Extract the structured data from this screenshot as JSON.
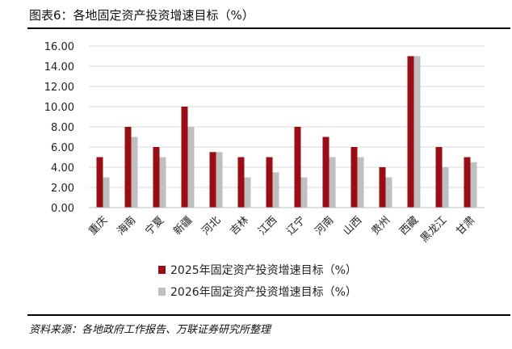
{
  "figure": {
    "title": "图表6：各地固定资产投资增速目标（%）",
    "source": "资料来源：各地政府工作报告、万联证券研究所整理"
  },
  "chart_data": {
    "type": "bar",
    "categories": [
      "重庆",
      "海南",
      "宁夏",
      "新疆",
      "河北",
      "吉林",
      "江西",
      "辽宁",
      "河南",
      "山西",
      "贵州",
      "西藏",
      "黑龙江",
      "甘肃"
    ],
    "series": [
      {
        "name": "2025年固定资产投资增速目标（%）",
        "color": "#9b0d14",
        "values": [
          5,
          8,
          6,
          10,
          5.5,
          5,
          5,
          8,
          7,
          6,
          4,
          15,
          6,
          5
        ]
      },
      {
        "name": "2026年固定资产投资增速目标（%）",
        "color": "#bfbfbf",
        "values": [
          3,
          7,
          5,
          8,
          5.5,
          3,
          3.5,
          3,
          5,
          5,
          3,
          15,
          4,
          4.5
        ]
      }
    ],
    "yticks": [
      "0.00",
      "2.00",
      "4.00",
      "6.00",
      "8.00",
      "10.00",
      "12.00",
      "14.00",
      "16.00"
    ],
    "ylim": [
      0,
      16
    ],
    "grid": true,
    "legend_position": "bottom"
  }
}
